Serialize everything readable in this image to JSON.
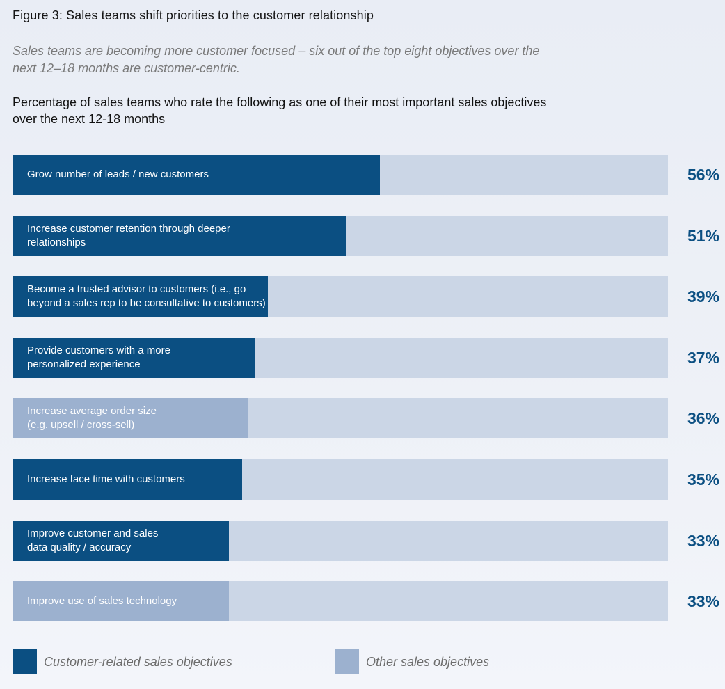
{
  "figure_title": "Figure 3: Sales teams shift priorities to the customer relationship",
  "subtitle": "Sales teams are becoming more customer focused – six out of the top eight objectives over the next 12–18 months are customer-centric.",
  "chart_heading": "Percentage of sales teams who rate the following as one of their most important sales objectives over the next 12-18 months",
  "colors": {
    "customer": "#0b4f82",
    "other": "#9cb1cf",
    "track": "#cbd6e6",
    "value_text": "#0b4f82"
  },
  "chart_data": {
    "type": "bar",
    "orientation": "horizontal",
    "unit": "%",
    "xlim": [
      0,
      100
    ],
    "grid": false,
    "legend_position": "bottom-left",
    "categories": [
      "Grow number of leads / new customers",
      "Increase customer retention through deeper\nrelationships",
      "Become a trusted advisor to customers (i.e., go\nbeyond a sales rep to be consultative to customers)",
      "Provide customers with a more\npersonalized experience",
      "Increase average order size\n(e.g. upsell / cross-sell)",
      "Increase face time with customers",
      "Improve customer and sales\ndata quality / accuracy",
      "Improve use of sales technology"
    ],
    "values": [
      56,
      51,
      39,
      37,
      36,
      35,
      33,
      33
    ],
    "value_labels": [
      "56%",
      "51%",
      "39%",
      "37%",
      "36%",
      "35%",
      "33%",
      "33%"
    ],
    "groups": [
      "customer",
      "customer",
      "customer",
      "customer",
      "other",
      "customer",
      "customer",
      "other"
    ],
    "legend": [
      {
        "group": "customer",
        "label": "Customer-related sales objectives"
      },
      {
        "group": "other",
        "label": "Other sales objectives"
      }
    ]
  }
}
